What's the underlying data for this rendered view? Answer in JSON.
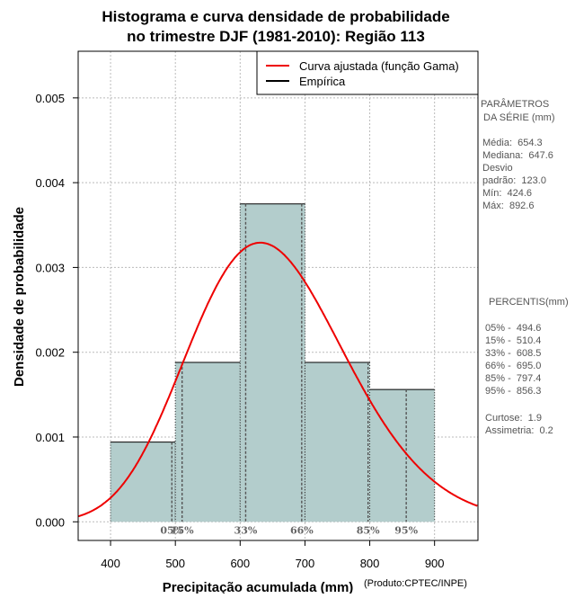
{
  "chart_data": {
    "type": "histogram",
    "title_line1": "Histograma e curva densidade de probabilidade",
    "title_line2": "no trimestre DJF (1981-2010): Região 113",
    "xlabel": "Precipitação acumulada (mm)",
    "ylabel": "Densidade de probabilidade",
    "credit": "(Produto:CPTEC/INPE)",
    "xlim": [
      350,
      967
    ],
    "ylim": [
      -0.00022,
      0.00555
    ],
    "x_ticks": [
      400,
      500,
      600,
      700,
      800,
      900
    ],
    "x_tick_labels": [
      "400",
      "500",
      "600",
      "700",
      "800",
      "900"
    ],
    "y_ticks": [
      0,
      0.001,
      0.002,
      0.003,
      0.004,
      0.005
    ],
    "y_tick_labels": [
      "0.000",
      "0.001",
      "0.002",
      "0.003",
      "0.004",
      "0.005"
    ],
    "bins": [
      {
        "from": 400,
        "to": 500,
        "density": 0.00094
      },
      {
        "from": 500,
        "to": 600,
        "density": 0.00188
      },
      {
        "from": 600,
        "to": 700,
        "density": 0.00375
      },
      {
        "from": 700,
        "to": 800,
        "density": 0.00188
      },
      {
        "from": 800,
        "to": 900,
        "density": 0.00156
      }
    ],
    "curve": {
      "name": "Curva ajustada (função Gama)",
      "mean": 654.3,
      "sd": 123.0,
      "color": "#ee0000"
    },
    "legend": [
      {
        "label": "Curva ajustada (função Gama)",
        "color": "#ee0000"
      },
      {
        "label": "Empírica",
        "color": "#000000"
      }
    ],
    "percentiles": [
      {
        "label": "05%",
        "value": 494.6
      },
      {
        "label": "15%",
        "value": 510.4
      },
      {
        "label": "33%",
        "value": 608.5
      },
      {
        "label": "66%",
        "value": 695.0
      },
      {
        "label": "85%",
        "value": 797.4
      },
      {
        "label": "95%",
        "value": 856.3
      }
    ],
    "bar_color": "#b3cdcc"
  },
  "stats": {
    "params_title_1": "PARÂMETROS",
    "params_title_2": " DA SÉRIE (mm)",
    "media": "Média:  654.3",
    "mediana": "Mediana:  647.6",
    "desvio_1": "Desvio",
    "desvio_2": "padrão:  123.0",
    "min": "Mín:  424.6",
    "max": "Máx:  892.6",
    "percentis_title": "PERCENTIS(mm)",
    "p05": "05% -  494.6",
    "p15": "15% -  510.4",
    "p33": "33% -  608.5",
    "p66": "66% -  695.0",
    "p85": "85% -  797.4",
    "p95": "95% -  856.3",
    "curtose": "Curtose:  1.9",
    "assimetria": "Assimetria:  0.2"
  }
}
